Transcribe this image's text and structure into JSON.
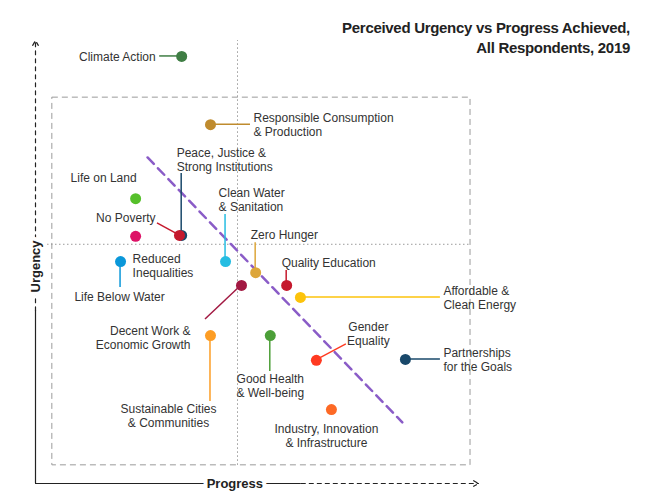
{
  "chart_data": {
    "type": "scatter",
    "title": "Perceived Urgency vs Progress Achieved,\nAll Respondents, 2019",
    "x_label": "Progress",
    "y_label": "Urgency",
    "labels": [
      "Climate Action",
      "Responsible Consumption\n& Production",
      "Peace, Justice &\nStrong Institutions",
      "Life on Land",
      "No Poverty",
      "Reduced\nInequalities",
      "Life Below Water",
      "Clean Water\n& Sanitation",
      "Zero Hunger",
      "Quality Education",
      "Affordable &\nClean Energy",
      "Decent Work &\nEconomic Growth",
      "Good Health\n& Well-being",
      "Sustainable Cities\n& Communities",
      "Gender\nEquality",
      "Partnerships\nfor the Goals",
      "Industry, Innovation\n& Infrastructure"
    ],
    "x": [
      33.0,
      39.5,
      33.0,
      22.6,
      32.5,
      22.6,
      19.2,
      42.9,
      49.7,
      56.7,
      59.8,
      46.5,
      53.0,
      39.5,
      63.4,
      83.5,
      66.8
    ],
    "values": [
      96.4,
      81.0,
      56.0,
      64.3,
      56.0,
      55.8,
      50.1,
      50.1,
      47.6,
      44.7,
      42.0,
      44.7,
      33.4,
      33.4,
      27.8,
      28.0,
      16.7
    ],
    "colors": [
      "#3f7e44",
      "#bf8b2e",
      "#19486a",
      "#56c02b",
      "#c5192d",
      "#dd1367",
      "#0a97d9",
      "#26bde2",
      "#dda63a",
      "#c5192d",
      "#fcc30b",
      "#a21942",
      "#4c9f38",
      "#fd9d24",
      "#ff3a21",
      "#19486a",
      "#fd6925"
    ],
    "xlim": [
      0,
      100
    ],
    "ylim": [
      0,
      100
    ],
    "tick_labels": false,
    "rule_x": 45.6,
    "rule_y": 54.0,
    "box": {
      "x": [
        3.8,
        98.2
      ],
      "y": [
        4.1,
        87.1
      ]
    },
    "trend_line": {
      "x": [
        25.3,
        82.8
      ],
      "y": [
        73.6,
        13.8
      ]
    }
  }
}
